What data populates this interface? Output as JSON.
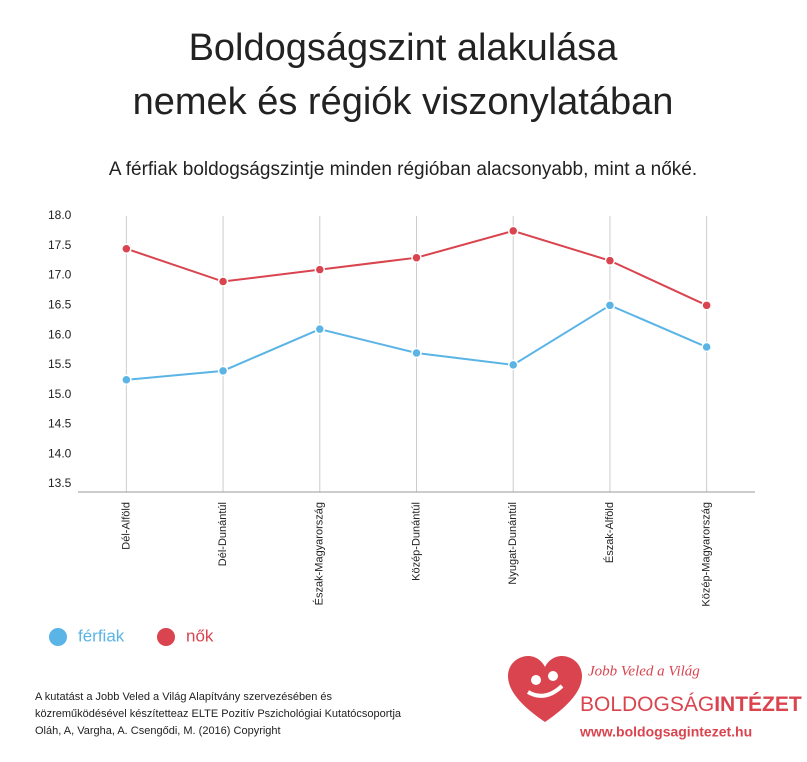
{
  "chart_data": {
    "type": "line",
    "title": [
      "Boldogságszint alakulása",
      "nemek és régiók viszonylatában"
    ],
    "subtitle": "A férfiak boldogságszintje minden régióban alacsonyabb, mint a nőké.",
    "categories": [
      "Dél-Alföld",
      "Dél-Dunántúl",
      "Észak-Magyarország",
      "Közép-Dunántúl",
      "Nyugat-Dunántúl",
      "Észak-Alföld",
      "Közép-Magyarország"
    ],
    "series": [
      {
        "name": "férfiak",
        "color": "#5ab4e5",
        "values": [
          15.25,
          15.4,
          16.1,
          15.7,
          15.5,
          16.5,
          15.8
        ]
      },
      {
        "name": "nők",
        "color": "#d9444f",
        "values": [
          17.45,
          16.9,
          17.1,
          17.3,
          17.75,
          17.25,
          16.5
        ]
      }
    ],
    "ylim": [
      13.5,
      18.0
    ],
    "yticks": [
      {
        "value": 13.5,
        "label": "13.5"
      },
      {
        "value": 14,
        "label": "14.0"
      },
      {
        "value": 14.5,
        "label": "14.5"
      },
      {
        "value": 15,
        "label": "15.0"
      },
      {
        "value": 15.5,
        "label": "15.5"
      },
      {
        "value": 16,
        "label": "16.0"
      },
      {
        "value": 16.5,
        "label": "16.5"
      },
      {
        "value": 17,
        "label": "17.0"
      },
      {
        "value": 17.5,
        "label": "17.5"
      },
      {
        "value": 18,
        "label": "18.0"
      }
    ],
    "grid": true
  },
  "footnote": [
    "A kutatást a Jobb Veled a Világ Alapítvány szervezésében és",
    "közreműködésével készítetteaz ELTE Pozitív Pszichológiai Kutatócsoportja",
    "Oláh, A, Vargha, A. Csengődi, M. (2016) Copyright"
  ],
  "logo": {
    "tagline": "Jobb Veled a Világ",
    "name_light": "BOLDOGSÁG",
    "name_bold": "INTÉZET",
    "url": "www.boldogsagintezet.hu"
  }
}
